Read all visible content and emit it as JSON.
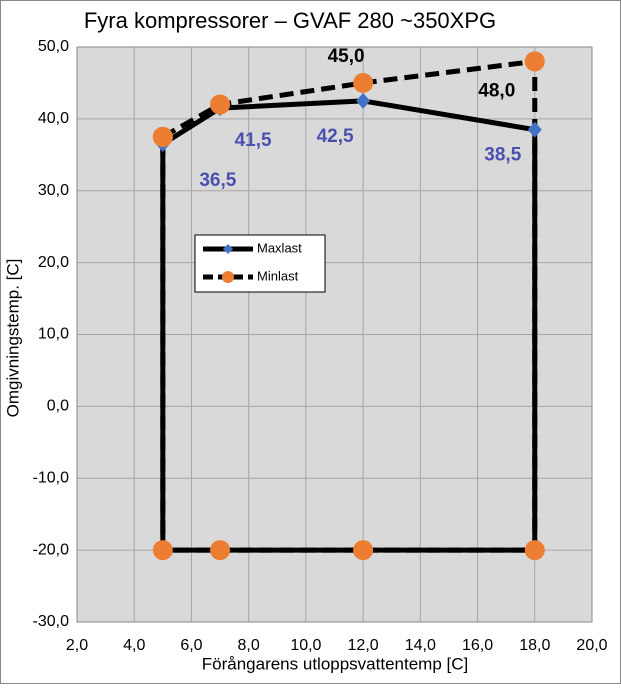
{
  "chart_data": {
    "type": "line",
    "title": "Fyra kompressorer – GVAF 280 ~350XPG",
    "x_label": "Förångarens utloppsvattentemp [C]",
    "y_label": "Omgivningstemp. [C]",
    "xlim": [
      2,
      20
    ],
    "ylim": [
      -30,
      50
    ],
    "xticks": [
      {
        "value": 2,
        "label": "2,0"
      },
      {
        "value": 4,
        "label": "4,0"
      },
      {
        "value": 6,
        "label": "6,0"
      },
      {
        "value": 8,
        "label": "8,0"
      },
      {
        "value": 10,
        "label": "10,0"
      },
      {
        "value": 12,
        "label": "12,0"
      },
      {
        "value": 14,
        "label": "14,0"
      },
      {
        "value": 16,
        "label": "16,0"
      },
      {
        "value": 18,
        "label": "18,0"
      },
      {
        "value": 20,
        "label": "20,0"
      }
    ],
    "yticks": [
      {
        "value": -30,
        "label": "-30,0"
      },
      {
        "value": -20,
        "label": "-20,0"
      },
      {
        "value": -10,
        "label": "-10,0"
      },
      {
        "value": 0,
        "label": "0,0"
      },
      {
        "value": 10,
        "label": "10,0"
      },
      {
        "value": 20,
        "label": "20,0"
      },
      {
        "value": 30,
        "label": "30,0"
      },
      {
        "value": 40,
        "label": "40,0"
      },
      {
        "value": 50,
        "label": "50,0"
      }
    ],
    "grid": true,
    "legend": "center-left",
    "series": [
      {
        "name": "Maxlast",
        "color": "#000000",
        "marker": "diamond",
        "marker_color": "#4472c4",
        "label_color": "#4a4fb0",
        "dashed": false,
        "x": [
          5,
          5,
          7,
          12,
          18,
          18,
          5
        ],
        "values": [
          -20,
          36.5,
          41.5,
          42.5,
          38.5,
          -20,
          -20
        ],
        "value_labels": [
          null,
          "36,5",
          "41,5",
          "42,5",
          "38,5",
          null,
          null
        ]
      },
      {
        "name": "Minlast",
        "color": "#000000",
        "marker": "circle",
        "marker_color": "#ed7d31",
        "label_color": "#000000",
        "dashed": true,
        "x": [
          5,
          7,
          12,
          18,
          18,
          12,
          7,
          5,
          5
        ],
        "values": [
          37.5,
          42,
          45,
          48,
          -20,
          -20,
          -20,
          -20,
          37.5
        ],
        "value_labels": [
          null,
          null,
          "45,0",
          "48,0",
          null,
          null,
          null,
          null,
          null
        ]
      }
    ]
  }
}
